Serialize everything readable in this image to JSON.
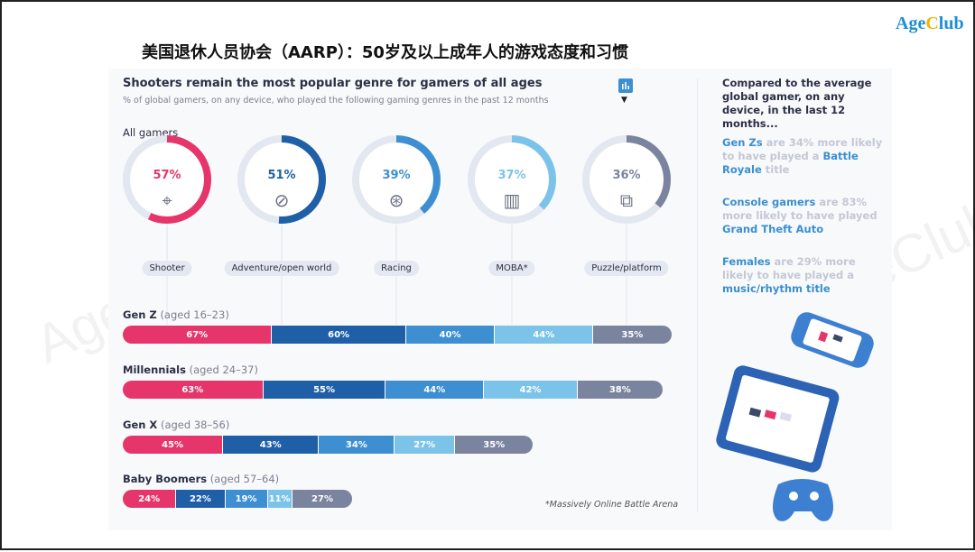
{
  "logo": "AgeClub",
  "cn_title": "美国退休人员协会（AARP）：50岁及以上成年人的游戏态度和习惯",
  "watermark": "AgeClub",
  "colors": {
    "shooter": "#e5356b",
    "adventure": "#1f5fa8",
    "racing": "#3d8fd2",
    "moba": "#7cc3ea",
    "puzzle": "#7b849f",
    "track": "#e3e7f0"
  },
  "chart_data": [
    {
      "type": "pie",
      "subtype": "donut",
      "title": "Shooters remain the most popular genre for gamers of all ages",
      "subtitle": "% of global gamers, on any device, who played the following gaming genres in the past 12 months",
      "group_label": "All gamers",
      "categories": [
        "Shooter",
        "Adventure/open world",
        "Racing",
        "MOBA*",
        "Puzzle/platform"
      ],
      "values": [
        57,
        51,
        39,
        37,
        36
      ],
      "labels": [
        "57%",
        "51%",
        "39%",
        "37%",
        "36%"
      ],
      "icons": [
        "crosshair-icon",
        "compass-icon",
        "steering-wheel-icon",
        "map-icon",
        "puzzle-icon"
      ]
    },
    {
      "type": "bar",
      "subtype": "stacked-horizontal",
      "categories": [
        "Shooter",
        "Adventure/open world",
        "Racing",
        "MOBA*",
        "Puzzle/platform"
      ],
      "groups": [
        {
          "name": "Gen Z",
          "age": "(aged 16–23)",
          "values": [
            67,
            60,
            40,
            44,
            35
          ]
        },
        {
          "name": "Millennials",
          "age": "(aged 24–37)",
          "values": [
            63,
            55,
            44,
            42,
            38
          ]
        },
        {
          "name": "Gen X",
          "age": "(aged 38–56)",
          "values": [
            45,
            43,
            34,
            27,
            35
          ]
        },
        {
          "name": "Baby Boomers",
          "age": "(aged 57–64)",
          "values": [
            24,
            22,
            19,
            11,
            27
          ]
        }
      ],
      "footnote": "*Massively Online Battle Arena"
    }
  ],
  "side": {
    "heading": "Compared to the average global gamer, on any device, in the last 12 months...",
    "facts": [
      {
        "a": "Gen Zs",
        "b": " are 34% more likely to have played a ",
        "c": "Battle Royale",
        "d": " title"
      },
      {
        "a": "Console gamers",
        "b": " are 83% more likely to have played ",
        "c": "Grand Theft Auto",
        "d": ""
      },
      {
        "a": "Females",
        "b": " are 29% more likely to have played a ",
        "c": "music/rhythm title",
        "d": ""
      }
    ]
  }
}
